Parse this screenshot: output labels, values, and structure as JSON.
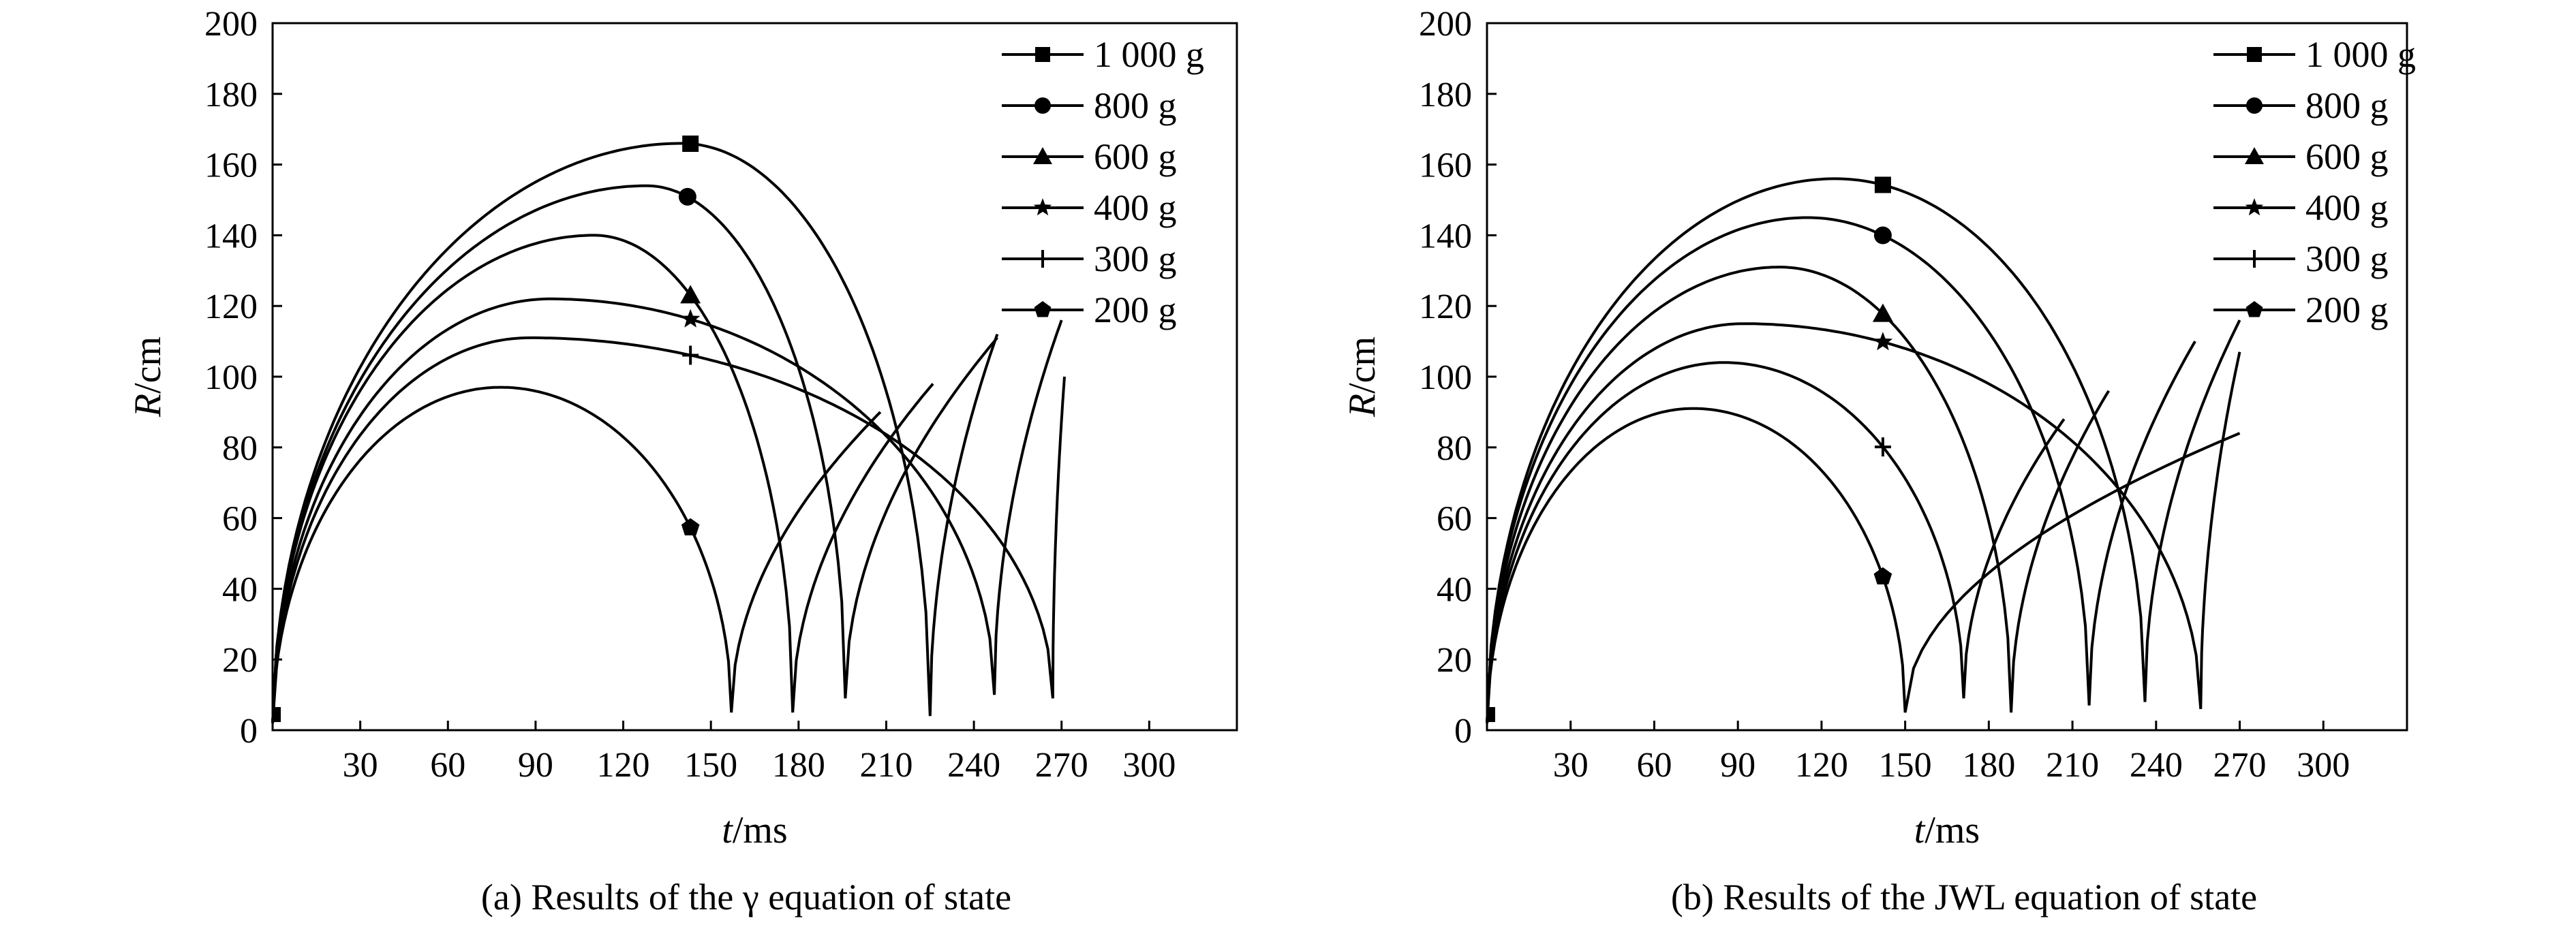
{
  "chart_data": [
    {
      "type": "line",
      "caption": "(a) Results of the γ equation of state",
      "xlabel": "t/ms",
      "ylabel": "R/cm",
      "xlim": [
        0,
        330
      ],
      "ylim": [
        0,
        200
      ],
      "xticks": [
        30,
        60,
        90,
        120,
        150,
        180,
        210,
        240,
        270,
        300
      ],
      "yticks": [
        0,
        20,
        40,
        60,
        80,
        100,
        120,
        140,
        160,
        180,
        200
      ],
      "grid": false,
      "legend_position": "top-right",
      "series": [
        {
          "name": "1 000 g",
          "marker": "square",
          "marker_x": 143,
          "max_R": 166,
          "t_peak": 140,
          "t_min": 225,
          "min_R": 4,
          "rebound_t": 248,
          "rebound_R": 112
        },
        {
          "name": "800 g",
          "marker": "circle",
          "marker_x": 142,
          "max_R": 154,
          "t_peak": 128,
          "t_min": 196,
          "min_R": 9,
          "rebound_t": 248,
          "rebound_R": 111
        },
        {
          "name": "600 g",
          "marker": "triangle",
          "marker_x": 143,
          "max_R": 140,
          "t_peak": 110,
          "t_min": 178,
          "min_R": 5,
          "rebound_t": 226,
          "rebound_R": 98
        },
        {
          "name": "400 g",
          "marker": "star",
          "marker_x": 143,
          "max_R": 122,
          "t_peak": 95,
          "t_min": 247,
          "min_R": 10,
          "rebound_t": 270,
          "rebound_R": 116
        },
        {
          "name": "300 g",
          "marker": "cross",
          "marker_x": 143,
          "max_R": 111,
          "t_peak": 88,
          "t_min": 267,
          "min_R": 9,
          "rebound_t": 271,
          "rebound_R": 100
        },
        {
          "name": "200 g",
          "marker": "pentagon",
          "marker_x": 143,
          "max_R": 97,
          "t_peak": 78,
          "t_min": 157,
          "min_R": 5,
          "rebound_t": 208,
          "rebound_R": 90
        }
      ]
    },
    {
      "type": "line",
      "caption": "(b) Results of the JWL equation of state",
      "xlabel": "t/ms",
      "ylabel": "R/cm",
      "xlim": [
        0,
        330
      ],
      "ylim": [
        0,
        200
      ],
      "xticks": [
        30,
        60,
        90,
        120,
        150,
        180,
        210,
        240,
        270,
        300
      ],
      "yticks": [
        0,
        20,
        40,
        60,
        80,
        100,
        120,
        140,
        160,
        180,
        200
      ],
      "grid": false,
      "legend_position": "top-right",
      "series": [
        {
          "name": "1 000 g",
          "marker": "square",
          "marker_x": 142,
          "max_R": 156,
          "t_peak": 125,
          "t_min": 236,
          "min_R": 8,
          "rebound_t": 270,
          "rebound_R": 116
        },
        {
          "name": "800 g",
          "marker": "circle",
          "marker_x": 142,
          "max_R": 145,
          "t_peak": 115,
          "t_min": 216,
          "min_R": 7,
          "rebound_t": 254,
          "rebound_R": 110
        },
        {
          "name": "600 g",
          "marker": "triangle",
          "marker_x": 142,
          "max_R": 131,
          "t_peak": 105,
          "t_min": 188,
          "min_R": 5,
          "rebound_t": 223,
          "rebound_R": 96
        },
        {
          "name": "400 g",
          "marker": "star",
          "marker_x": 142,
          "max_R": 115,
          "t_peak": 92,
          "t_min": 256,
          "min_R": 6,
          "rebound_t": 270,
          "rebound_R": 107
        },
        {
          "name": "300 g",
          "marker": "cross",
          "marker_x": 142,
          "max_R": 104,
          "t_peak": 85,
          "t_min": 171,
          "min_R": 9,
          "rebound_t": 207,
          "rebound_R": 88
        },
        {
          "name": "200 g",
          "marker": "pentagon",
          "marker_x": 142,
          "max_R": 91,
          "t_peak": 74,
          "t_min": 150,
          "min_R": 5,
          "rebound_t": 270,
          "rebound_R": 84
        }
      ]
    }
  ]
}
